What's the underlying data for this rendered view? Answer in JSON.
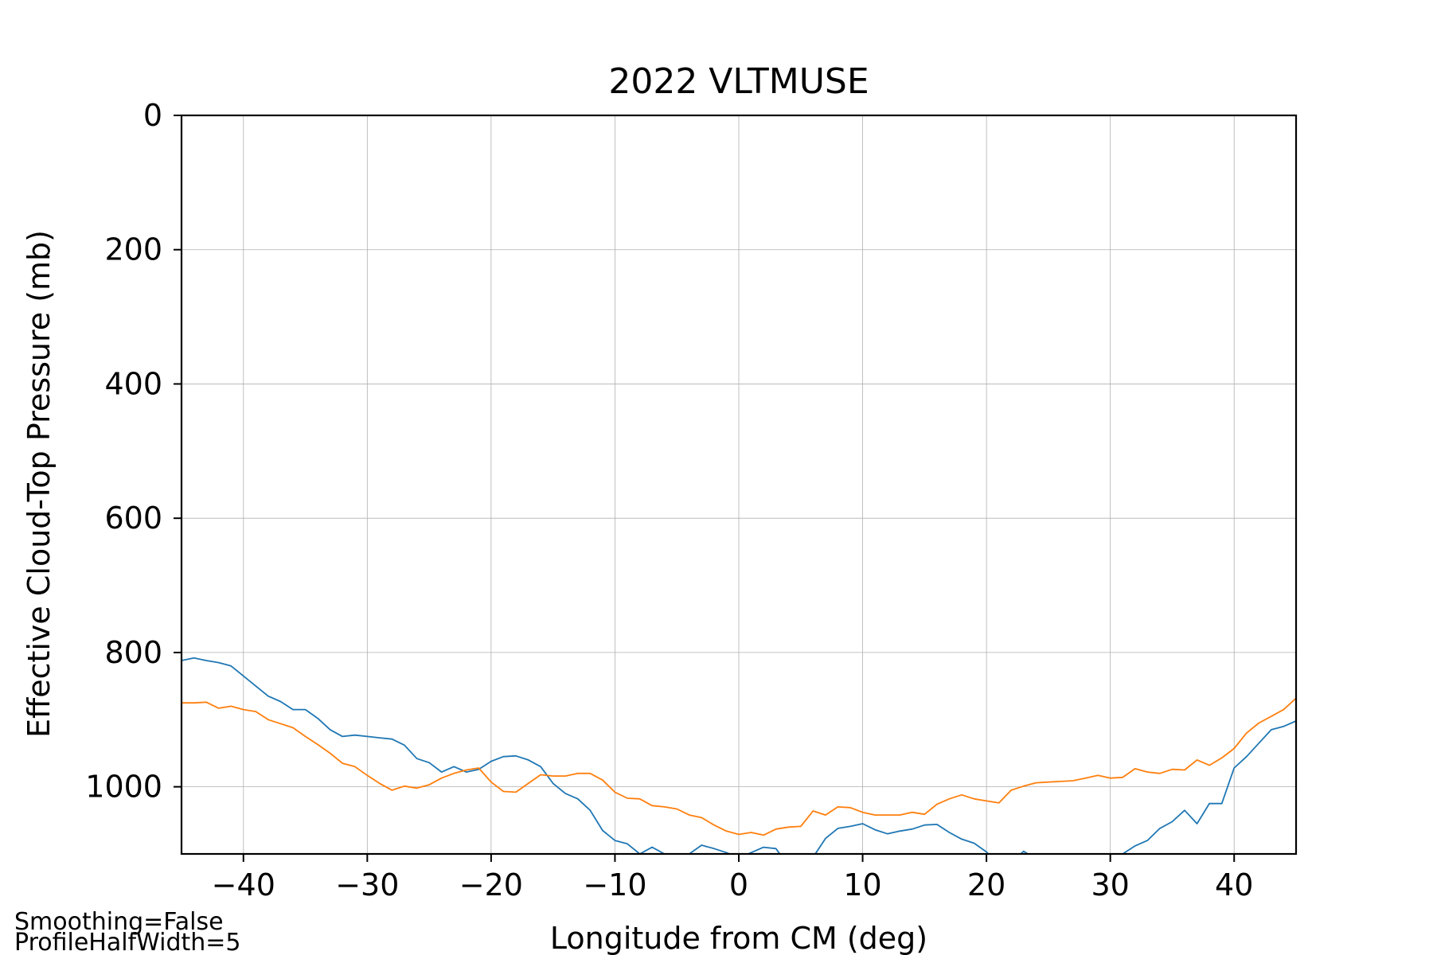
{
  "chart_data": {
    "type": "line",
    "title": "2022 VLTMUSE",
    "xlabel": "Longitude from CM (deg)",
    "ylabel": "Effective Cloud-Top Pressure (mb)",
    "xlim": [
      -45,
      45
    ],
    "ylim": [
      1100,
      0
    ],
    "y_inverted": true,
    "grid": true,
    "x_ticks": [
      -40,
      -30,
      -20,
      -10,
      0,
      10,
      20,
      30,
      40
    ],
    "x_tick_labels": [
      "−40",
      "−30",
      "−20",
      "−10",
      "0",
      "10",
      "20",
      "30",
      "40"
    ],
    "y_ticks": [
      0,
      200,
      400,
      600,
      800,
      1000
    ],
    "y_tick_labels": [
      "0",
      "200",
      "400",
      "600",
      "800",
      "1000"
    ],
    "series": [
      {
        "color": "#1f77b4",
        "x": [
          -45,
          -44,
          -43,
          -42,
          -41,
          -40,
          -39,
          -38,
          -37,
          -36,
          -35,
          -34,
          -33,
          -32,
          -31,
          -30,
          -29,
          -28,
          -27,
          -26,
          -25,
          -24,
          -23,
          -22,
          -21,
          -20,
          -19,
          -18,
          -17,
          -16,
          -15,
          -14,
          -13,
          -12,
          -11,
          -10,
          -9,
          -8,
          -7,
          -6,
          -5,
          -4,
          -3,
          -2,
          -1,
          0,
          1,
          2,
          3,
          4,
          5,
          6,
          7,
          8,
          9,
          10,
          11,
          12,
          13,
          14,
          15,
          16,
          17,
          18,
          19,
          20,
          21,
          22,
          23,
          24,
          25,
          26,
          27,
          28,
          29,
          30,
          31,
          32,
          33,
          34,
          35,
          36,
          37,
          38,
          39,
          40,
          41,
          42,
          43,
          44,
          45
        ],
        "y": [
          812,
          808,
          812,
          815,
          820,
          835,
          850,
          865,
          873,
          885,
          885,
          898,
          915,
          925,
          923,
          925,
          927,
          929,
          938,
          958,
          964,
          978,
          970,
          978,
          974,
          962,
          955,
          954,
          960,
          970,
          995,
          1010,
          1018,
          1035,
          1065,
          1080,
          1085,
          1100,
          1090,
          1100,
          1108,
          1100,
          1087,
          1092,
          1098,
          1106,
          1098,
          1090,
          1092,
          1118,
          1125,
          1105,
          1077,
          1062,
          1059,
          1055,
          1064,
          1070,
          1066,
          1063,
          1057,
          1056,
          1068,
          1078,
          1084,
          1097,
          1118,
          1113,
          1096,
          1108,
          1118,
          1112,
          1117,
          1111,
          1110,
          1109,
          1100,
          1088,
          1080,
          1062,
          1052,
          1035,
          1055,
          1025,
          1025,
          972,
          955,
          935,
          915,
          910,
          902
        ]
      },
      {
        "color": "#ff7f0e",
        "x": [
          -45,
          -44,
          -43,
          -42,
          -41,
          -40,
          -39,
          -38,
          -37,
          -36,
          -35,
          -34,
          -33,
          -32,
          -31,
          -30,
          -29,
          -28,
          -27,
          -26,
          -25,
          -24,
          -23,
          -22,
          -21,
          -20,
          -19,
          -18,
          -17,
          -16,
          -15,
          -14,
          -13,
          -12,
          -11,
          -10,
          -9,
          -8,
          -7,
          -6,
          -5,
          -4,
          -3,
          -2,
          -1,
          0,
          1,
          2,
          3,
          4,
          5,
          6,
          7,
          8,
          9,
          10,
          11,
          12,
          13,
          14,
          15,
          16,
          17,
          18,
          19,
          20,
          21,
          22,
          23,
          24,
          25,
          26,
          27,
          28,
          29,
          30,
          31,
          32,
          33,
          34,
          35,
          36,
          37,
          38,
          39,
          40,
          41,
          42,
          43,
          44,
          45
        ],
        "y": [
          875,
          875,
          874,
          883,
          880,
          885,
          888,
          900,
          906,
          912,
          925,
          937,
          950,
          965,
          970,
          983,
          995,
          1005,
          999,
          1002,
          997,
          987,
          980,
          975,
          972,
          993,
          1007,
          1008,
          995,
          982,
          984,
          984,
          980,
          980,
          990,
          1008,
          1017,
          1018,
          1028,
          1030,
          1033,
          1042,
          1046,
          1057,
          1066,
          1071,
          1068,
          1072,
          1063,
          1060,
          1059,
          1036,
          1042,
          1030,
          1031,
          1038,
          1042,
          1042,
          1042,
          1038,
          1041,
          1026,
          1018,
          1012,
          1018,
          1021,
          1024,
          1005,
          999,
          994,
          993,
          992,
          991,
          987,
          983,
          987,
          986,
          973,
          978,
          980,
          974,
          975,
          960,
          968,
          957,
          943,
          920,
          905,
          895,
          885,
          868
        ]
      }
    ]
  },
  "annotations": {
    "line1": "Smoothing=False",
    "line2": "ProfileHalfWidth=5"
  }
}
